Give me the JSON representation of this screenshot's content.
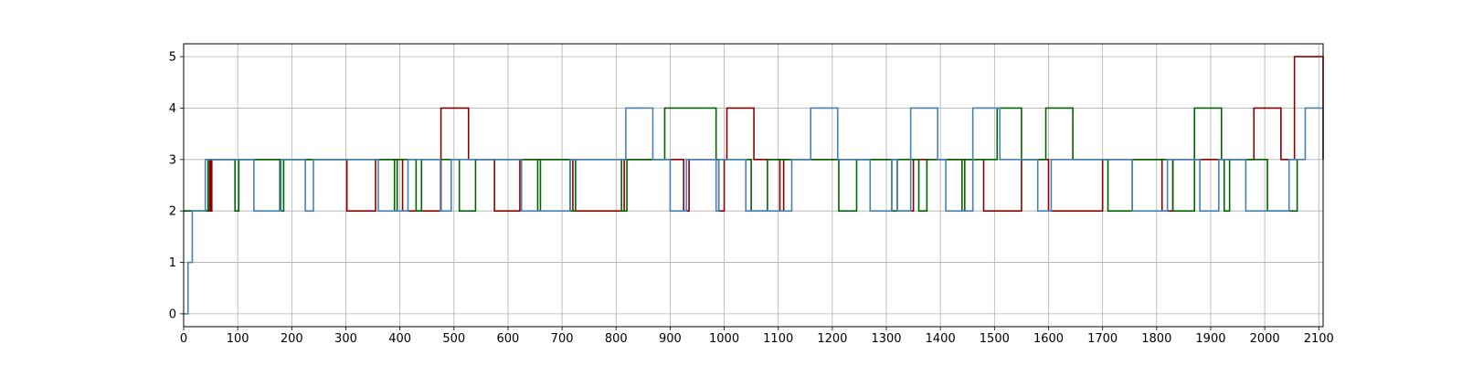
{
  "chart_data": {
    "type": "line",
    "title": "",
    "xlabel": "",
    "ylabel": "",
    "xlim": [
      0,
      2108
    ],
    "ylim": [
      -0.25,
      5.25
    ],
    "grid": true,
    "xticks": [
      0,
      100,
      200,
      300,
      400,
      500,
      600,
      700,
      800,
      900,
      1000,
      1100,
      1200,
      1300,
      1400,
      1500,
      1600,
      1700,
      1800,
      1900,
      2000,
      2100
    ],
    "yticks": [
      0,
      1,
      2,
      3,
      4,
      5
    ],
    "series": [
      {
        "color": "#8b0000",
        "steps": [
          [
            0,
            2
          ],
          [
            48,
            3
          ],
          [
            50,
            2
          ],
          [
            52,
            3
          ],
          [
            130,
            3
          ],
          [
            175,
            3
          ],
          [
            300,
            3
          ],
          [
            302,
            2
          ],
          [
            355,
            3
          ],
          [
            405,
            2
          ],
          [
            476,
            4
          ],
          [
            527,
            3
          ],
          [
            575,
            2
          ],
          [
            622,
            3
          ],
          [
            720,
            2
          ],
          [
            815,
            3
          ],
          [
            870,
            3
          ],
          [
            900,
            3
          ],
          [
            925,
            2
          ],
          [
            935,
            3
          ],
          [
            990,
            2
          ],
          [
            1000,
            3
          ],
          [
            1005,
            4
          ],
          [
            1055,
            3
          ],
          [
            1103,
            2
          ],
          [
            1110,
            3
          ],
          [
            1180,
            3
          ],
          [
            1320,
            2
          ],
          [
            1350,
            3
          ],
          [
            1380,
            3
          ],
          [
            1470,
            3
          ],
          [
            1480,
            2
          ],
          [
            1550,
            3
          ],
          [
            1600,
            2
          ],
          [
            1700,
            3
          ],
          [
            1750,
            3
          ],
          [
            1800,
            3
          ],
          [
            1810,
            2
          ],
          [
            1830,
            3
          ],
          [
            1970,
            3
          ],
          [
            1980,
            4
          ],
          [
            2030,
            3
          ],
          [
            2055,
            5
          ],
          [
            2108,
            3
          ]
        ]
      },
      {
        "color": "#006400",
        "steps": [
          [
            0,
            2
          ],
          [
            45,
            3
          ],
          [
            95,
            2
          ],
          [
            102,
            3
          ],
          [
            178,
            2
          ],
          [
            185,
            3
          ],
          [
            250,
            3
          ],
          [
            350,
            3
          ],
          [
            390,
            2
          ],
          [
            395,
            3
          ],
          [
            430,
            2
          ],
          [
            440,
            3
          ],
          [
            490,
            3
          ],
          [
            510,
            2
          ],
          [
            540,
            3
          ],
          [
            600,
            3
          ],
          [
            655,
            2
          ],
          [
            660,
            3
          ],
          [
            715,
            2
          ],
          [
            725,
            3
          ],
          [
            810,
            2
          ],
          [
            820,
            3
          ],
          [
            890,
            4
          ],
          [
            985,
            3
          ],
          [
            1050,
            2
          ],
          [
            1080,
            3
          ],
          [
            1190,
            3
          ],
          [
            1212,
            2
          ],
          [
            1245,
            3
          ],
          [
            1270,
            3
          ],
          [
            1310,
            2
          ],
          [
            1320,
            3
          ],
          [
            1360,
            2
          ],
          [
            1375,
            3
          ],
          [
            1440,
            2
          ],
          [
            1445,
            3
          ],
          [
            1505,
            4
          ],
          [
            1550,
            3
          ],
          [
            1595,
            4
          ],
          [
            1645,
            3
          ],
          [
            1710,
            2
          ],
          [
            1755,
            3
          ],
          [
            1830,
            2
          ],
          [
            1870,
            4
          ],
          [
            1920,
            3
          ],
          [
            1925,
            2
          ],
          [
            1935,
            3
          ],
          [
            1990,
            3
          ],
          [
            2005,
            2
          ],
          [
            2060,
            3
          ]
        ]
      },
      {
        "color": "#4682b4",
        "steps": [
          [
            0,
            0
          ],
          [
            8,
            1
          ],
          [
            16,
            2
          ],
          [
            40,
            3
          ],
          [
            130,
            2
          ],
          [
            180,
            3
          ],
          [
            225,
            2
          ],
          [
            240,
            3
          ],
          [
            295,
            3
          ],
          [
            360,
            2
          ],
          [
            415,
            3
          ],
          [
            475,
            2
          ],
          [
            495,
            3
          ],
          [
            560,
            3
          ],
          [
            625,
            2
          ],
          [
            715,
            3
          ],
          [
            818,
            4
          ],
          [
            868,
            3
          ],
          [
            900,
            2
          ],
          [
            930,
            3
          ],
          [
            985,
            2
          ],
          [
            990,
            3
          ],
          [
            1040,
            2
          ],
          [
            1125,
            3
          ],
          [
            1160,
            4
          ],
          [
            1210,
            3
          ],
          [
            1270,
            2
          ],
          [
            1310,
            3
          ],
          [
            1320,
            2
          ],
          [
            1345,
            4
          ],
          [
            1395,
            3
          ],
          [
            1410,
            2
          ],
          [
            1460,
            4
          ],
          [
            1510,
            3
          ],
          [
            1580,
            2
          ],
          [
            1605,
            3
          ],
          [
            1755,
            2
          ],
          [
            1820,
            3
          ],
          [
            1880,
            2
          ],
          [
            1915,
            3
          ],
          [
            1965,
            2
          ],
          [
            2045,
            3
          ],
          [
            2075,
            4
          ],
          [
            2108,
            3
          ]
        ]
      }
    ]
  }
}
